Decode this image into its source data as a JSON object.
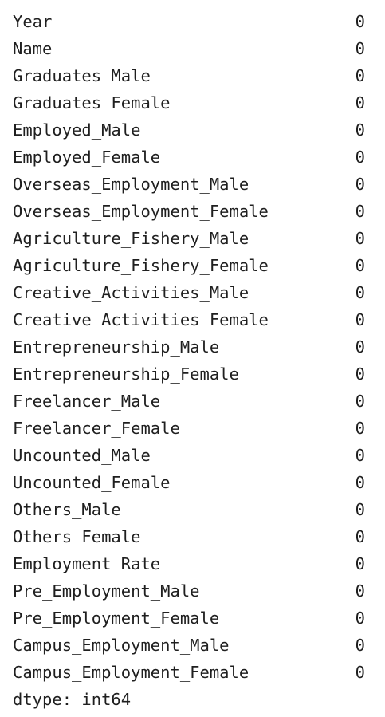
{
  "series": {
    "rows": [
      {
        "name": "Year",
        "value": "0"
      },
      {
        "name": "Name",
        "value": "0"
      },
      {
        "name": "Graduates_Male",
        "value": "0"
      },
      {
        "name": "Graduates_Female",
        "value": "0"
      },
      {
        "name": "Employed_Male",
        "value": "0"
      },
      {
        "name": "Employed_Female",
        "value": "0"
      },
      {
        "name": "Overseas_Employment_Male",
        "value": "0"
      },
      {
        "name": "Overseas_Employment_Female",
        "value": "0"
      },
      {
        "name": "Agriculture_Fishery_Male",
        "value": "0"
      },
      {
        "name": "Agriculture_Fishery_Female",
        "value": "0"
      },
      {
        "name": "Creative_Activities_Male",
        "value": "0"
      },
      {
        "name": "Creative_Activities_Female",
        "value": "0"
      },
      {
        "name": "Entrepreneurship_Male",
        "value": "0"
      },
      {
        "name": "Entrepreneurship_Female",
        "value": "0"
      },
      {
        "name": "Freelancer_Male",
        "value": "0"
      },
      {
        "name": "Freelancer_Female",
        "value": "0"
      },
      {
        "name": "Uncounted_Male",
        "value": "0"
      },
      {
        "name": "Uncounted_Female",
        "value": "0"
      },
      {
        "name": "Others_Male",
        "value": "0"
      },
      {
        "name": "Others_Female",
        "value": "0"
      },
      {
        "name": "Employment_Rate",
        "value": "0"
      },
      {
        "name": "Pre_Employment_Male",
        "value": "0"
      },
      {
        "name": "Pre_Employment_Female",
        "value": "0"
      },
      {
        "name": "Campus_Employment_Male",
        "value": "0"
      },
      {
        "name": "Campus_Employment_Female",
        "value": "0"
      }
    ],
    "dtype_line": "dtype: int64"
  }
}
